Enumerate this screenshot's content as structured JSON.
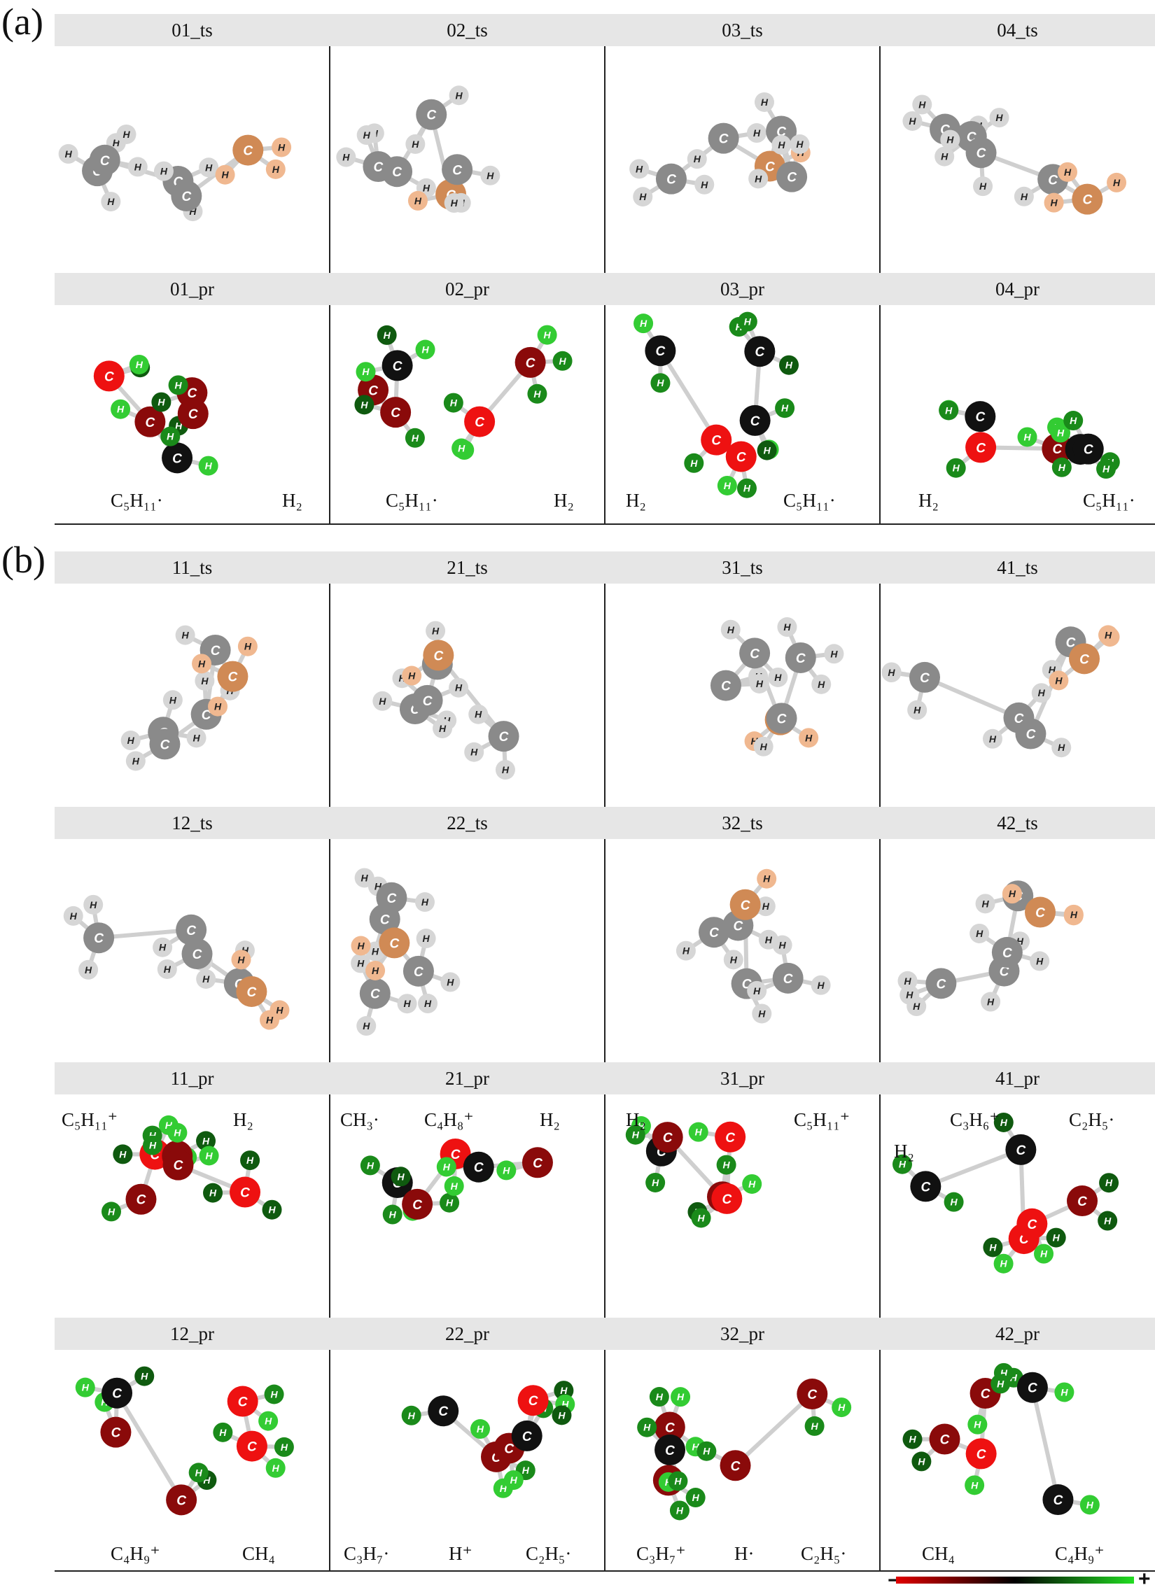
{
  "panels": [
    {
      "label": "(a)",
      "rows": [
        [
          {
            "title": "01_ts",
            "formulas": []
          },
          {
            "title": "02_ts",
            "formulas": []
          },
          {
            "title": "03_ts",
            "formulas": []
          },
          {
            "title": "04_ts",
            "formulas": []
          }
        ],
        [
          {
            "title": "01_pr",
            "formulas": [
              "C₅H₁₁·",
              "H₂"
            ]
          },
          {
            "title": "02_pr",
            "formulas": [
              "C₅H₁₁·",
              "H₂"
            ]
          },
          {
            "title": "03_pr",
            "formulas": [
              "H₂",
              "C₅H₁₁·"
            ]
          },
          {
            "title": "04_pr",
            "formulas": [
              "H₂",
              "C₅H₁₁·"
            ]
          }
        ]
      ]
    },
    {
      "label": "(b)",
      "rows": [
        [
          {
            "title": "11_ts",
            "formulas": []
          },
          {
            "title": "21_ts",
            "formulas": []
          },
          {
            "title": "31_ts",
            "formulas": []
          },
          {
            "title": "41_ts",
            "formulas": []
          }
        ],
        [
          {
            "title": "12_ts",
            "formulas": []
          },
          {
            "title": "22_ts",
            "formulas": []
          },
          {
            "title": "32_ts",
            "formulas": []
          },
          {
            "title": "42_ts",
            "formulas": []
          }
        ],
        [
          {
            "title": "11_pr",
            "formulas": [
              "C₅H₁₁⁺",
              "H₂"
            ]
          },
          {
            "title": "21_pr",
            "formulas": [
              "CH₃·",
              "C₄H₈⁺",
              "H₂"
            ]
          },
          {
            "title": "31_pr",
            "formulas": [
              "H₂",
              "C₅H₁₁⁺"
            ]
          },
          {
            "title": "41_pr",
            "formulas": [
              "C₃H₆⁺",
              "C₂H₅·",
              "H₂"
            ]
          }
        ],
        [
          {
            "title": "12_pr",
            "formulas": [
              "C₄H₉⁺",
              "CH₄"
            ]
          },
          {
            "title": "22_pr",
            "formulas": [
              "C₃H₇·",
              "H⁺",
              "C₂H₅·"
            ]
          },
          {
            "title": "32_pr",
            "formulas": [
              "C₃H₇⁺",
              "H·",
              "C₂H₅·"
            ]
          },
          {
            "title": "42_pr",
            "formulas": [
              "CH₄",
              "C₄H₉⁺"
            ]
          }
        ]
      ]
    }
  ],
  "atom_labels": {
    "carbon": "C",
    "hydrogen": "H"
  },
  "colorbar": {
    "minus": "−",
    "plus": "+",
    "colors": [
      "#e00000",
      "#000000",
      "#22dd22"
    ]
  },
  "colors": {
    "ts_carbon": "#8a8a8a",
    "ts_hydrogen": "#d6d6d6",
    "ts_highlight_carbon": "#d08a55",
    "ts_highlight_hydrogen": "#f0b890",
    "pr_red": "#ee1111",
    "pr_darkred": "#8a0a0a",
    "pr_black": "#111111",
    "pr_green": "#1a8a1a",
    "pr_lightgreen": "#33cc33"
  }
}
